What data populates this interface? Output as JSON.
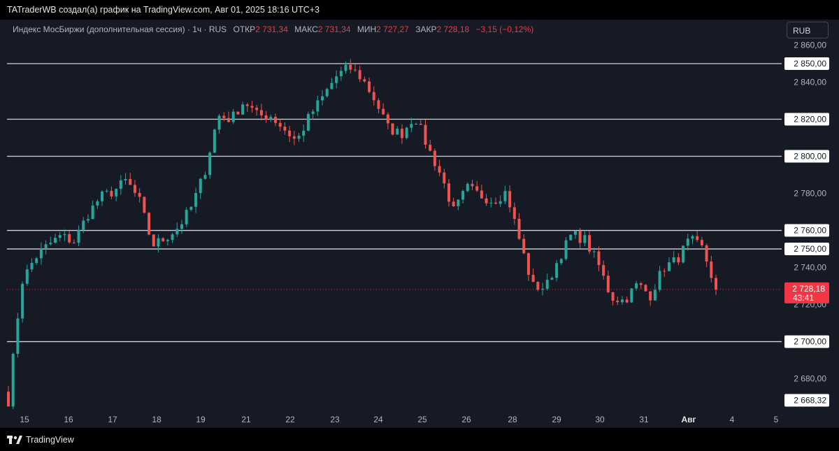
{
  "header": {
    "attribution": "TATraderWB создал(а) график на TradingView.com, Авг 01, 2025 18:16 UTC+3"
  },
  "legend": {
    "symbol": "Индекс МосБиржи (дополнительная сессия) · 1ч · RUS",
    "open_label": "ОТКР",
    "open_value": "2 731,34",
    "high_label": "МАКС",
    "high_value": "2 731,34",
    "low_label": "МИН",
    "low_value": "2 727,27",
    "close_label": "ЗАКР",
    "close_value": "2 728,18",
    "change": "−3,15 (−0,12%)"
  },
  "currency_button": "RUB",
  "footer": {
    "brand": "TradingView"
  },
  "colors": {
    "up": "#26a69a",
    "down": "#ef5350",
    "background": "#161a25",
    "level_line": "#d1d4dc",
    "price_badge": "#f23645"
  },
  "chart_data": {
    "type": "candlestick",
    "y_axis": {
      "range": [
        2664,
        2870
      ],
      "ticks": [
        2680,
        2700,
        2720,
        2740,
        2760,
        2780,
        2800,
        2820,
        2840,
        2860
      ],
      "tick_labels": [
        "2 680,00",
        "2 700,00",
        "2 720,00",
        "2 740,00",
        "2 760,00",
        "2 780,00",
        "2 800,00",
        "2 820,00",
        "2 840,00",
        "2 860,00"
      ]
    },
    "x_axis": {
      "labels": [
        "15",
        "16",
        "17",
        "18",
        "19",
        "21",
        "22",
        "23",
        "24",
        "25",
        "26",
        "28",
        "29",
        "30",
        "31",
        "Авг",
        "4",
        "5"
      ]
    },
    "horizontal_levels": [
      {
        "value": 2850,
        "label": "2 850,00"
      },
      {
        "value": 2820,
        "label": "2 820,00"
      },
      {
        "value": 2800,
        "label": "2 800,00"
      },
      {
        "value": 2760,
        "label": "2 760,00"
      },
      {
        "value": 2750,
        "label": "2 750,00"
      },
      {
        "value": 2700,
        "label": "2 700,00"
      },
      {
        "value": 2668.32,
        "label": "2 668,32"
      }
    ],
    "last_price": {
      "value": 2728.18,
      "label": "2 728,18",
      "countdown": "43:41"
    },
    "path_anchors": [
      [
        "15",
        2668
      ],
      [
        "15",
        2732
      ],
      [
        "15",
        2745
      ],
      [
        "15",
        2752
      ],
      [
        "16",
        2757
      ],
      [
        "16",
        2754
      ],
      [
        "16",
        2768
      ],
      [
        "17",
        2778
      ],
      [
        "17",
        2781
      ],
      [
        "17",
        2787
      ],
      [
        "17",
        2776
      ],
      [
        "18",
        2752
      ],
      [
        "18",
        2756
      ],
      [
        "18",
        2762
      ],
      [
        "19",
        2773
      ],
      [
        "19",
        2792
      ],
      [
        "19",
        2822
      ],
      [
        "19",
        2820
      ],
      [
        "21",
        2830
      ],
      [
        "21",
        2822
      ],
      [
        "21",
        2822
      ],
      [
        "22",
        2815
      ],
      [
        "22",
        2808
      ],
      [
        "22",
        2822
      ],
      [
        "23",
        2832
      ],
      [
        "23",
        2843
      ],
      [
        "23",
        2848
      ],
      [
        "24",
        2842
      ],
      [
        "24",
        2830
      ],
      [
        "24",
        2815
      ],
      [
        "25",
        2812
      ],
      [
        "25",
        2822
      ],
      [
        "25",
        2805
      ],
      [
        "25",
        2790
      ],
      [
        "26",
        2770
      ],
      [
        "26",
        2783
      ],
      [
        "26",
        2779
      ],
      [
        "28",
        2776
      ],
      [
        "28",
        2781
      ],
      [
        "28",
        2755
      ],
      [
        "28",
        2730
      ],
      [
        "29",
        2729
      ],
      [
        "29",
        2745
      ],
      [
        "29",
        2758
      ],
      [
        "30",
        2755
      ],
      [
        "30",
        2742
      ],
      [
        "30",
        2724
      ],
      [
        "31",
        2722
      ],
      [
        "31",
        2731
      ],
      [
        "31",
        2725
      ],
      [
        "31",
        2740
      ],
      [
        "Авг",
        2744
      ],
      [
        "Авг",
        2755
      ],
      [
        "Авг",
        2750
      ],
      [
        "Авг",
        2728
      ]
    ]
  }
}
